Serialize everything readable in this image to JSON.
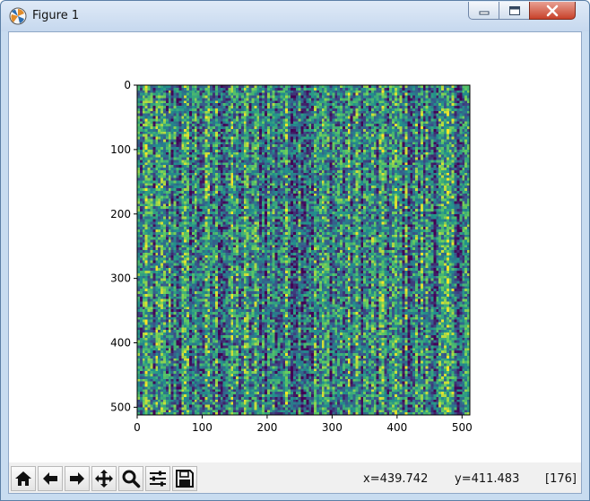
{
  "window": {
    "title": "Figure 1"
  },
  "toolbar": {
    "buttons": [
      {
        "name": "home-button",
        "icon": "home-icon"
      },
      {
        "name": "back-button",
        "icon": "arrow-left-icon"
      },
      {
        "name": "forward-button",
        "icon": "arrow-right-icon"
      },
      {
        "name": "pan-button",
        "icon": "move-icon"
      },
      {
        "name": "zoom-button",
        "icon": "magnifier-icon"
      },
      {
        "name": "configure-subplots-button",
        "icon": "sliders-icon"
      },
      {
        "name": "save-button",
        "icon": "save-icon"
      }
    ]
  },
  "status": {
    "x": "x=439.742",
    "y": "y=411.483",
    "value": "[176]"
  },
  "chart_data": {
    "type": "heatmap",
    "title": "",
    "xlabel": "",
    "ylabel": "",
    "xlim": [
      0,
      512
    ],
    "ylim": [
      512,
      0
    ],
    "xticks": [
      "0",
      "100",
      "200",
      "300",
      "400",
      "500"
    ],
    "yticks": [
      "0",
      "100",
      "200",
      "300",
      "400",
      "500"
    ],
    "colormap": "viridis",
    "colors": {
      "dark": "#3b1f6a",
      "mid": "#2a8a8b",
      "teal": "#1ea17e",
      "light": "#b7de2b"
    }
  }
}
